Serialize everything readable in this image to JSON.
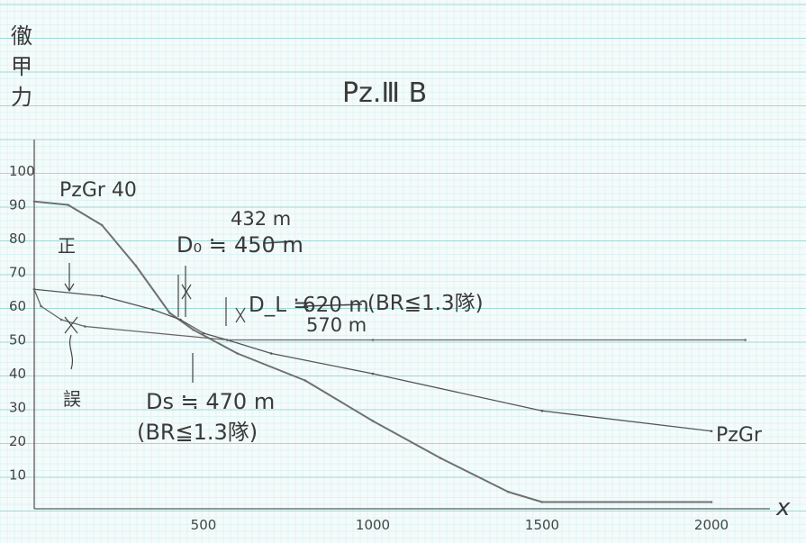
{
  "chart_data": {
    "type": "line",
    "title": "Pz.Ⅲ B",
    "ylabel": "徹甲力",
    "xlabel": "x",
    "xlim": [
      0,
      2200
    ],
    "ylim": [
      0,
      100
    ],
    "x_ticks": [
      "500",
      "1000",
      "1500",
      "2000"
    ],
    "y_ticks": [
      "10",
      "20",
      "30",
      "40",
      "50",
      "60",
      "70",
      "80",
      "90",
      "100"
    ],
    "series": [
      {
        "name": "PzGr 40",
        "color": "#707070",
        "points": [
          [
            0,
            91
          ],
          [
            100,
            90
          ],
          [
            200,
            84
          ],
          [
            300,
            72
          ],
          [
            400,
            58
          ],
          [
            470,
            53
          ],
          [
            600,
            46
          ],
          [
            800,
            38
          ],
          [
            1000,
            26
          ],
          [
            1200,
            15
          ],
          [
            1400,
            5
          ],
          [
            1500,
            2
          ],
          [
            2000,
            2
          ]
        ]
      },
      {
        "name": "PzGr",
        "color": "#555555",
        "points": [
          [
            0,
            65
          ],
          [
            200,
            63
          ],
          [
            350,
            59
          ],
          [
            432,
            56
          ],
          [
            500,
            52
          ],
          [
            570,
            50
          ],
          [
            700,
            46
          ],
          [
            1000,
            40
          ],
          [
            1500,
            29
          ],
          [
            2000,
            23
          ]
        ]
      },
      {
        "name": "誤",
        "color": "#666666",
        "points": [
          [
            0,
            65
          ],
          [
            20,
            60
          ],
          [
            80,
            56
          ],
          [
            150,
            54
          ],
          [
            570,
            50
          ],
          [
            1000,
            50
          ],
          [
            2100,
            50
          ]
        ]
      }
    ],
    "annotations": {
      "sei": "正",
      "go": "誤",
      "do_label": "D₀ ≒ ",
      "do_value_new": "432 m",
      "do_value_old": "450 m",
      "dl_label": "D_L ≒ ",
      "dl_value_old": "620 m",
      "dl_note": "(BR≦1.3隊)",
      "dl_value_new": "570 m",
      "ds_label": "Ds ≒ 470 m",
      "ds_note": "(BR≦1.3隊)",
      "pzgr40_label": "PzGr 40",
      "pzgr_label": "PzGr"
    }
  }
}
